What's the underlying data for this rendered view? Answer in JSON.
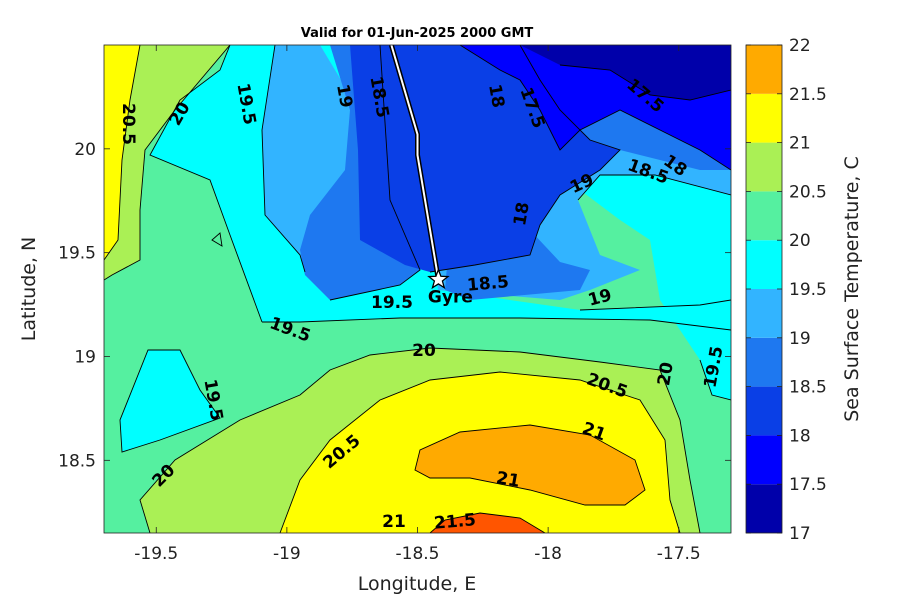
{
  "chart_data": {
    "type": "contour",
    "title": "Valid for 01-Jun-2025 2000 GMT",
    "xlabel": "Longitude, E",
    "ylabel": "Latitude, N",
    "xlim": [
      -19.7,
      -17.3
    ],
    "ylim": [
      18.15,
      20.5
    ],
    "xticks": [
      "-19.5",
      "-19",
      "-18.5",
      "-18",
      "-17.5"
    ],
    "xtick_values": [
      -19.5,
      -19,
      -18.5,
      -18,
      -17.5
    ],
    "yticks": [
      "18.5",
      "19",
      "19.5",
      "20"
    ],
    "ytick_values": [
      18.5,
      19,
      19.5,
      20
    ],
    "colorbar": {
      "label": "Sea Surface Temperature, C",
      "ticks": [
        "17",
        "17.5",
        "18",
        "18.5",
        "19",
        "19.5",
        "20",
        "20.5",
        "21",
        "21.5",
        "22"
      ],
      "levels": [
        17,
        17.5,
        18,
        18.5,
        19,
        19.5,
        20,
        20.5,
        21,
        21.5,
        22
      ],
      "colors": [
        "#0000aa",
        "#0000ff",
        "#0a3fe6",
        "#1e78f0",
        "#32b4ff",
        "#00ffff",
        "#55f0a0",
        "#aaf055",
        "#ffff00",
        "#ffaa00",
        "#ff5500"
      ]
    },
    "contour_labels": [
      "20.5",
      "20",
      "19.5",
      "19",
      "18.5",
      "18",
      "17.5",
      "17.5",
      "18",
      "18.5",
      "19",
      "18",
      "18.5",
      "19",
      "19.5",
      "19.5",
      "20",
      "19.5",
      "20.5",
      "20",
      "20",
      "19.5",
      "20.5",
      "21",
      "21",
      "21",
      "21.5"
    ],
    "marker": {
      "label": "Gyre",
      "lon": -18.42,
      "lat": 19.37
    },
    "track": {
      "lon": [
        -18.6,
        -18.5,
        -18.5,
        -18.42
      ],
      "lat": [
        20.5,
        20.07,
        19.97,
        19.37
      ]
    }
  }
}
